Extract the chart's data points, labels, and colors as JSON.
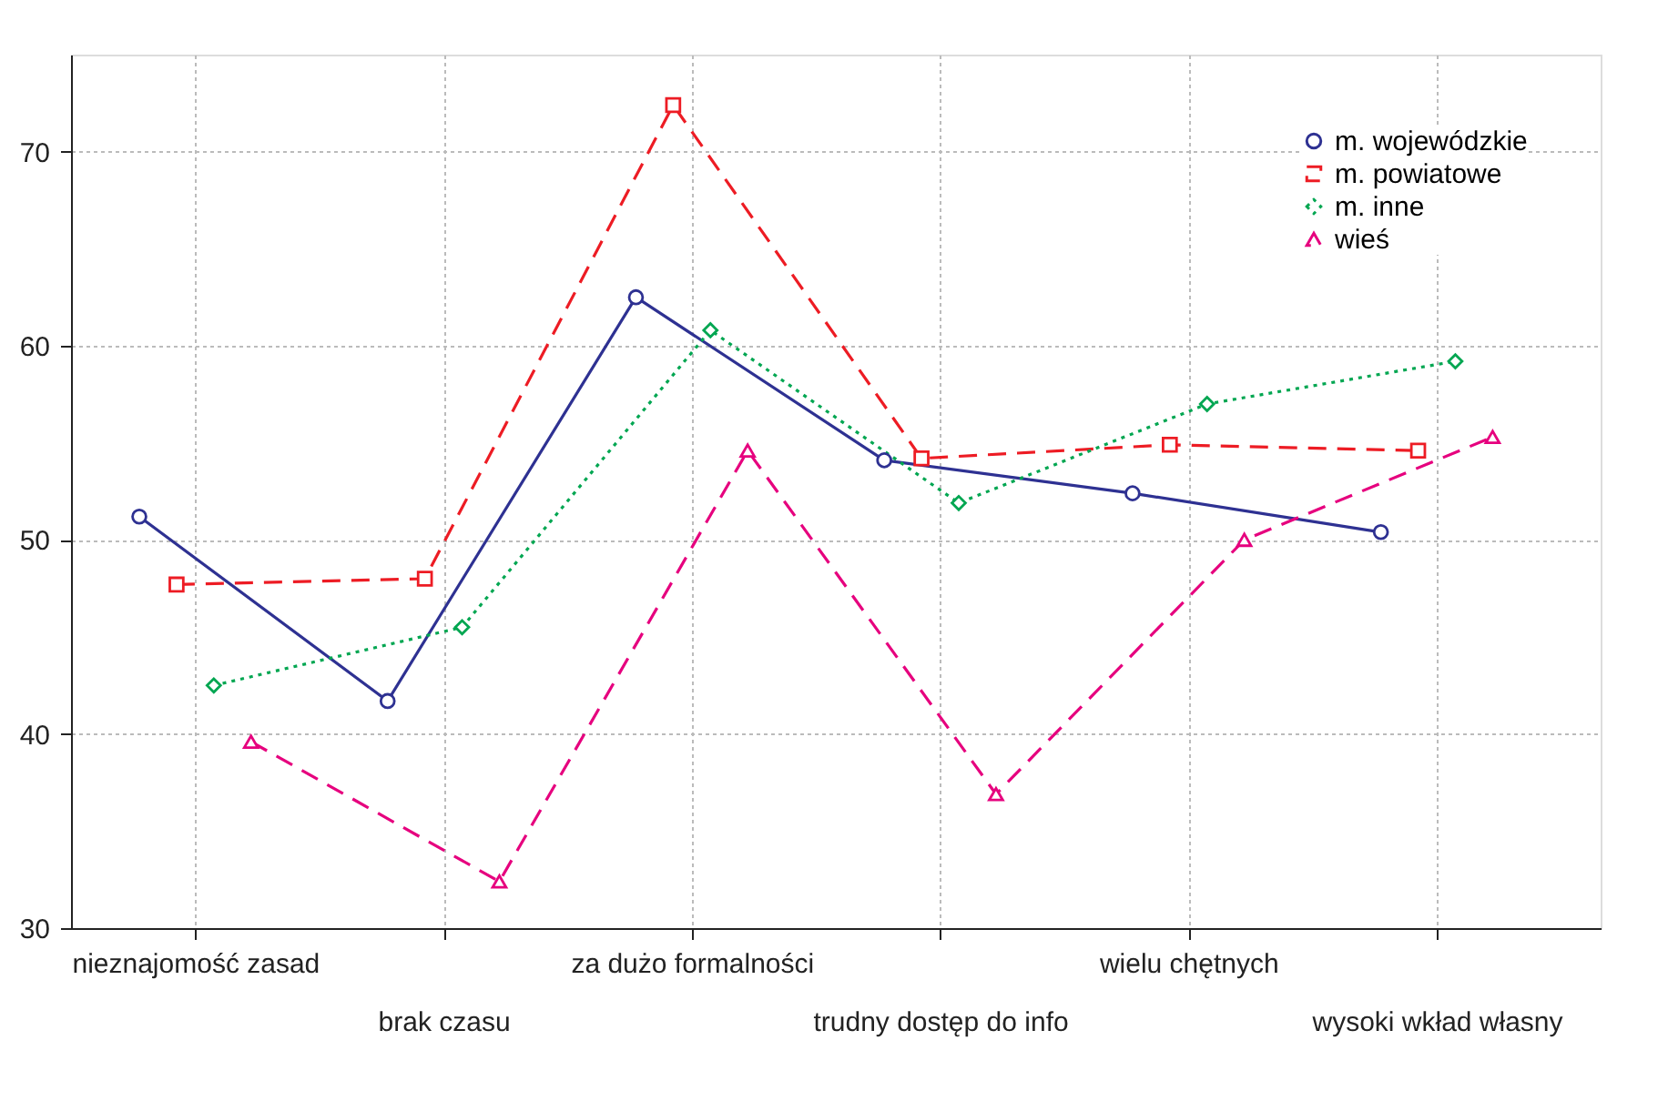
{
  "chart_data": {
    "type": "line",
    "categories": [
      "nieznajomość zasad",
      "brak czasu",
      "za dużo formalności",
      "trudny dostęp do info",
      "wielu chętnych",
      "wysoki wkład własny"
    ],
    "series": [
      {
        "name": "m. wojewódzkie",
        "color": "#2e3192",
        "line_style": "solid",
        "marker": "circle",
        "values": [
          51.2,
          41.7,
          62.5,
          54.1,
          52.4,
          50.4
        ]
      },
      {
        "name": "m. powiatowe",
        "color": "#ed1c24",
        "line_style": "dashed",
        "marker": "square",
        "values": [
          47.7,
          48.0,
          72.4,
          54.2,
          54.9,
          54.6
        ]
      },
      {
        "name": "m. inne",
        "color": "#00a651",
        "line_style": "dotted",
        "marker": "diamond",
        "values": [
          42.5,
          45.5,
          60.8,
          51.9,
          57.0,
          59.2
        ]
      },
      {
        "name": "wieś",
        "color": "#e6007e",
        "line_style": "dashed",
        "marker": "triangle",
        "values": [
          39.6,
          32.4,
          54.6,
          36.9,
          50.0,
          55.3
        ]
      }
    ],
    "ylim": [
      30,
      75
    ],
    "yticks": [
      30,
      40,
      50,
      60,
      70
    ],
    "grid": true,
    "legend": "top right"
  }
}
